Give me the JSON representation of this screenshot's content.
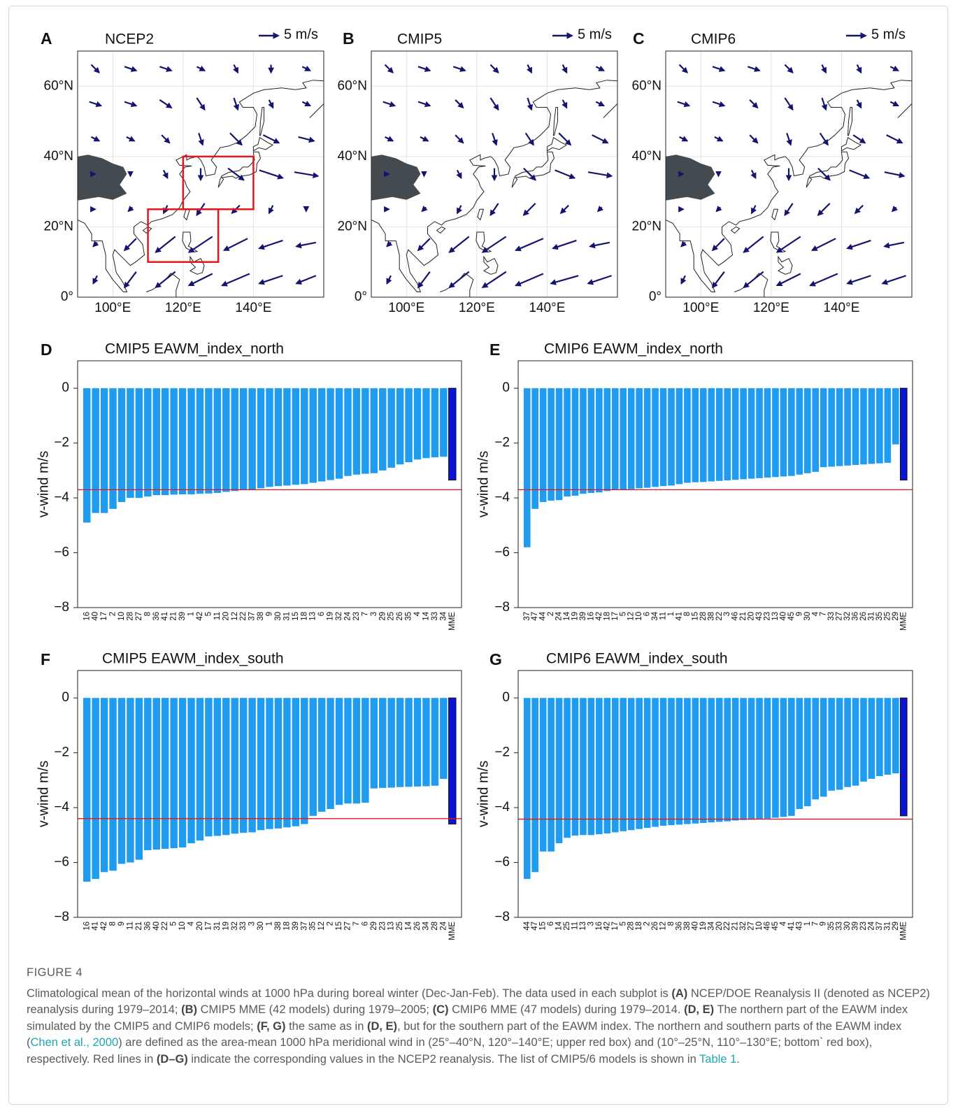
{
  "chart_data": [
    {
      "type": "vector",
      "label": "A",
      "title": "NCEP2",
      "key": {
        "value": 5,
        "label": "5 m/s"
      },
      "xlim": [
        90,
        160
      ],
      "ylim": [
        0,
        70
      ],
      "xticks": [
        {
          "value": 100,
          "label": "100°E"
        },
        {
          "value": 120,
          "label": "120°E"
        },
        {
          "value": 140,
          "label": "140°E"
        }
      ],
      "yticks": [
        {
          "value": 60,
          "label": "60°N"
        },
        {
          "value": 40,
          "label": "40°N"
        },
        {
          "value": 20,
          "label": "20°N"
        },
        {
          "value": 0,
          "label": "0°"
        }
      ],
      "grid": true,
      "color": "#14146e",
      "lon": [
        95,
        105,
        115,
        125,
        135,
        145,
        155
      ],
      "lat": [
        65,
        55,
        45,
        35,
        25,
        15,
        5
      ],
      "u": [
        [
          2,
          3,
          3,
          2,
          1,
          0,
          2
        ],
        [
          3,
          3,
          3,
          2,
          1,
          1,
          2
        ],
        [
          2,
          2,
          2,
          1,
          3,
          4,
          4
        ],
        [
          0,
          0,
          1,
          0,
          4,
          6,
          6
        ],
        [
          0,
          -1,
          -1,
          -2,
          -2,
          -1,
          0
        ],
        [
          -1,
          -3,
          -5,
          -6,
          -6,
          -6,
          -5
        ],
        [
          -1,
          -3,
          -5,
          -6,
          -7,
          -6,
          -5
        ]
      ],
      "v": [
        [
          -2,
          -1,
          -1,
          -1,
          -2,
          -2,
          -1
        ],
        [
          -1,
          -1,
          -2,
          -3,
          -3,
          -2,
          -1
        ],
        [
          -1,
          -1,
          -2,
          -3,
          -3,
          -2,
          -1
        ],
        [
          0,
          -1,
          -2,
          -3,
          -3,
          -2,
          -1
        ],
        [
          0,
          -1,
          -2,
          -3,
          -2,
          -2,
          -1
        ],
        [
          -1,
          -3,
          -4,
          -4,
          -3,
          -2,
          -1
        ],
        [
          -2,
          -4,
          -4,
          -3,
          -3,
          -2,
          -2
        ]
      ],
      "boxes": [
        {
          "lon": [
            120,
            140
          ],
          "lat": [
            25,
            40
          ]
        },
        {
          "lon": [
            110,
            130
          ],
          "lat": [
            10,
            25
          ]
        }
      ],
      "box_color": "#e8141b"
    },
    {
      "type": "vector",
      "label": "B",
      "title": "CMIP5",
      "key": {
        "value": 5,
        "label": "5 m/s"
      },
      "xlim": [
        90,
        160
      ],
      "ylim": [
        0,
        70
      ],
      "xticks": [
        {
          "value": 100,
          "label": "100°E"
        },
        {
          "value": 120,
          "label": "120°E"
        },
        {
          "value": 140,
          "label": "140°E"
        }
      ],
      "yticks": [
        {
          "value": 60,
          "label": "60°N"
        },
        {
          "value": 40,
          "label": "40°N"
        },
        {
          "value": 20,
          "label": "20°N"
        },
        {
          "value": 0,
          "label": "0°"
        }
      ],
      "grid": true,
      "color": "#14146e",
      "lon": [
        95,
        105,
        115,
        125,
        135,
        145,
        155
      ],
      "lat": [
        65,
        55,
        45,
        35,
        25,
        15,
        5
      ],
      "u": [
        [
          2,
          3,
          3,
          2,
          1,
          1,
          2
        ],
        [
          3,
          3,
          2,
          2,
          1,
          1,
          2
        ],
        [
          2,
          2,
          2,
          1,
          2,
          3,
          4
        ],
        [
          0,
          0,
          1,
          0,
          3,
          5,
          6
        ],
        [
          0,
          -1,
          -1,
          -2,
          -3,
          -2,
          -1
        ],
        [
          -1,
          -3,
          -5,
          -6,
          -7,
          -6,
          -5
        ],
        [
          -1,
          -3,
          -5,
          -6,
          -7,
          -7,
          -6
        ]
      ],
      "v": [
        [
          -2,
          -1,
          -1,
          -2,
          -2,
          -2,
          -1
        ],
        [
          -1,
          -1,
          -2,
          -3,
          -3,
          -2,
          -1
        ],
        [
          -1,
          -1,
          -2,
          -3,
          -3,
          -3,
          -2
        ],
        [
          0,
          -1,
          -2,
          -3,
          -3,
          -2,
          -1
        ],
        [
          0,
          -1,
          -2,
          -3,
          -3,
          -2,
          -1
        ],
        [
          -1,
          -3,
          -4,
          -4,
          -3,
          -2,
          -1
        ],
        [
          -2,
          -4,
          -4,
          -4,
          -3,
          -2,
          -2
        ]
      ]
    },
    {
      "type": "vector",
      "label": "C",
      "title": "CMIP6",
      "key": {
        "value": 5,
        "label": "5 m/s"
      },
      "xlim": [
        90,
        160
      ],
      "ylim": [
        0,
        70
      ],
      "xticks": [
        {
          "value": 100,
          "label": "100°E"
        },
        {
          "value": 120,
          "label": "120°E"
        },
        {
          "value": 140,
          "label": "140°E"
        }
      ],
      "yticks": [
        {
          "value": 60,
          "label": "60°N"
        },
        {
          "value": 40,
          "label": "40°N"
        },
        {
          "value": 20,
          "label": "20°N"
        },
        {
          "value": 0,
          "label": "0°"
        }
      ],
      "grid": true,
      "color": "#14146e",
      "lon": [
        95,
        105,
        115,
        125,
        135,
        145,
        155
      ],
      "lat": [
        65,
        55,
        45,
        35,
        25,
        15,
        5
      ],
      "u": [
        [
          2,
          3,
          3,
          2,
          1,
          1,
          2
        ],
        [
          3,
          3,
          2,
          2,
          1,
          1,
          2
        ],
        [
          2,
          2,
          2,
          1,
          2,
          3,
          4
        ],
        [
          0,
          0,
          1,
          0,
          3,
          5,
          5
        ],
        [
          0,
          -1,
          -1,
          -2,
          -3,
          -2,
          -1
        ],
        [
          -1,
          -3,
          -5,
          -6,
          -6,
          -6,
          -5
        ],
        [
          -1,
          -3,
          -5,
          -6,
          -7,
          -6,
          -6
        ]
      ],
      "v": [
        [
          -2,
          -1,
          -1,
          -2,
          -2,
          -2,
          -1
        ],
        [
          -1,
          -1,
          -2,
          -3,
          -3,
          -2,
          -1
        ],
        [
          -1,
          -1,
          -2,
          -3,
          -3,
          -2,
          -2
        ],
        [
          0,
          -1,
          -2,
          -3,
          -3,
          -2,
          -1
        ],
        [
          0,
          -1,
          -2,
          -3,
          -3,
          -2,
          -1
        ],
        [
          -1,
          -3,
          -4,
          -4,
          -3,
          -2,
          -1
        ],
        [
          -2,
          -4,
          -4,
          -3,
          -3,
          -2,
          -2
        ]
      ]
    },
    {
      "type": "bar",
      "label": "D",
      "title": "CMIP5 EAWM_index_north",
      "ylabel": "v-wind m/s",
      "categories": [
        "16",
        "40",
        "17",
        "2",
        "10",
        "28",
        "27",
        "8",
        "36",
        "41",
        "21",
        "39",
        "1",
        "42",
        "5",
        "11",
        "20",
        "12",
        "22",
        "37",
        "38",
        "9",
        "30",
        "31",
        "15",
        "18",
        "13",
        "6",
        "19",
        "32",
        "24",
        "23",
        "7",
        "3",
        "29",
        "25",
        "26",
        "35",
        "4",
        "14",
        "33",
        "34",
        "MME"
      ],
      "values": [
        -4.9,
        -4.55,
        -4.55,
        -4.4,
        -4.15,
        -4.0,
        -4.0,
        -3.95,
        -3.9,
        -3.9,
        -3.88,
        -3.87,
        -3.87,
        -3.85,
        -3.84,
        -3.82,
        -3.78,
        -3.75,
        -3.72,
        -3.7,
        -3.65,
        -3.6,
        -3.57,
        -3.55,
        -3.52,
        -3.5,
        -3.45,
        -3.4,
        -3.35,
        -3.3,
        -3.2,
        -3.15,
        -3.12,
        -3.1,
        -3.0,
        -2.9,
        -2.78,
        -2.7,
        -2.6,
        -2.55,
        -2.52,
        -2.5,
        -3.35
      ],
      "color": "#1f9cf0",
      "highlight_color": "#0a14d8",
      "reference_line": -3.7,
      "reference_color": "#e8141b",
      "ylim": [
        -8,
        1
      ],
      "yticks": [
        0,
        {
          "value": -2,
          "label": "−2"
        },
        {
          "value": -4,
          "label": "−4"
        },
        {
          "value": -6,
          "label": "−6"
        },
        {
          "value": -8,
          "label": "−8"
        }
      ]
    },
    {
      "type": "bar",
      "label": "E",
      "title": "CMIP6 EAWM_index_north",
      "ylabel": "v-wind m/s",
      "categories": [
        "37",
        "47",
        "44",
        "2",
        "24",
        "14",
        "19",
        "39",
        "16",
        "42",
        "18",
        "17",
        "5",
        "12",
        "10",
        "6",
        "34",
        "11",
        "1",
        "41",
        "8",
        "15",
        "28",
        "38",
        "22",
        "3",
        "46",
        "21",
        "20",
        "43",
        "23",
        "13",
        "40",
        "45",
        "9",
        "30",
        "4",
        "7",
        "33",
        "27",
        "32",
        "36",
        "26",
        "31",
        "35",
        "25",
        "29",
        "MME"
      ],
      "values": [
        -5.8,
        -4.4,
        -4.15,
        -4.1,
        -4.08,
        -3.95,
        -3.92,
        -3.85,
        -3.82,
        -3.8,
        -3.75,
        -3.7,
        -3.7,
        -3.68,
        -3.65,
        -3.63,
        -3.6,
        -3.57,
        -3.55,
        -3.5,
        -3.45,
        -3.43,
        -3.42,
        -3.4,
        -3.38,
        -3.36,
        -3.34,
        -3.32,
        -3.3,
        -3.28,
        -3.26,
        -3.24,
        -3.22,
        -3.2,
        -3.15,
        -3.1,
        -3.05,
        -2.88,
        -2.86,
        -2.84,
        -2.82,
        -2.8,
        -2.78,
        -2.76,
        -2.74,
        -2.72,
        -2.05,
        -3.35
      ],
      "color": "#1f9cf0",
      "highlight_color": "#0a14d8",
      "reference_line": -3.7,
      "reference_color": "#e8141b",
      "ylim": [
        -8,
        1
      ],
      "yticks": [
        0,
        {
          "value": -2,
          "label": "−2"
        },
        {
          "value": -4,
          "label": "−4"
        },
        {
          "value": -6,
          "label": "−6"
        },
        {
          "value": -8,
          "label": "−8"
        }
      ]
    },
    {
      "type": "bar",
      "label": "F",
      "title": "CMIP5 EAWM_index_south",
      "ylabel": "v-wind m/s",
      "categories": [
        "16",
        "41",
        "42",
        "8",
        "9",
        "11",
        "21",
        "36",
        "40",
        "22",
        "5",
        "10",
        "4",
        "20",
        "17",
        "31",
        "19",
        "32",
        "33",
        "3",
        "30",
        "1",
        "38",
        "18",
        "39",
        "37",
        "35",
        "12",
        "2",
        "15",
        "27",
        "7",
        "6",
        "29",
        "23",
        "13",
        "25",
        "14",
        "26",
        "34",
        "28",
        "24",
        "MME"
      ],
      "values": [
        -6.7,
        -6.6,
        -6.35,
        -6.3,
        -6.05,
        -6.0,
        -5.9,
        -5.55,
        -5.53,
        -5.5,
        -5.48,
        -5.45,
        -5.3,
        -5.2,
        -5.05,
        -5.03,
        -5.0,
        -4.95,
        -4.92,
        -4.9,
        -4.82,
        -4.78,
        -4.76,
        -4.72,
        -4.68,
        -4.6,
        -4.3,
        -4.15,
        -4.05,
        -3.9,
        -3.85,
        -3.85,
        -3.82,
        -3.3,
        -3.28,
        -3.27,
        -3.25,
        -3.24,
        -3.23,
        -3.22,
        -3.2,
        -2.95,
        -4.6
      ],
      "color": "#1f9cf0",
      "highlight_color": "#0a14d8",
      "reference_line": -4.4,
      "reference_color": "#e8141b",
      "ylim": [
        -8,
        1
      ],
      "yticks": [
        0,
        {
          "value": -2,
          "label": "−2"
        },
        {
          "value": -4,
          "label": "−4"
        },
        {
          "value": -6,
          "label": "−6"
        },
        {
          "value": -8,
          "label": "−8"
        }
      ]
    },
    {
      "type": "bar",
      "label": "G",
      "title": "CMIP6 EAWM_index_south",
      "ylabel": "v-wind m/s",
      "categories": [
        "44",
        "47",
        "15",
        "6",
        "14",
        "25",
        "11",
        "13",
        "3",
        "16",
        "42",
        "17",
        "5",
        "28",
        "18",
        "2",
        "26",
        "12",
        "8",
        "36",
        "38",
        "40",
        "19",
        "34",
        "20",
        "22",
        "21",
        "32",
        "27",
        "10",
        "46",
        "45",
        "4",
        "41",
        "43",
        "1",
        "7",
        "9",
        "35",
        "33",
        "30",
        "39",
        "23",
        "24",
        "37",
        "31",
        "29",
        "MME"
      ],
      "values": [
        -6.6,
        -6.35,
        -5.6,
        -5.6,
        -5.3,
        -5.1,
        -5.02,
        -5.0,
        -5.0,
        -4.97,
        -4.94,
        -4.9,
        -4.86,
        -4.82,
        -4.78,
        -4.74,
        -4.7,
        -4.66,
        -4.64,
        -4.62,
        -4.6,
        -4.58,
        -4.56,
        -4.54,
        -4.52,
        -4.5,
        -4.47,
        -4.45,
        -4.44,
        -4.42,
        -4.4,
        -4.37,
        -4.34,
        -4.3,
        -4.05,
        -3.95,
        -3.7,
        -3.6,
        -3.38,
        -3.35,
        -3.25,
        -3.2,
        -3.05,
        -2.95,
        -2.85,
        -2.8,
        -2.75,
        -4.3
      ],
      "color": "#1f9cf0",
      "highlight_color": "#0a14d8",
      "reference_line": -4.42,
      "reference_color": "#e8141b",
      "ylim": [
        -8,
        1
      ],
      "yticks": [
        0,
        {
          "value": -2,
          "label": "−2"
        },
        {
          "value": -4,
          "label": "−4"
        },
        {
          "value": -6,
          "label": "−6"
        },
        {
          "value": -8,
          "label": "−8"
        }
      ]
    }
  ],
  "caption": {
    "label": "FIGURE 4",
    "parts": [
      {
        "text": "Climatological mean of the horizontal winds at 1000 hPa during boreal winter (Dec-Jan-Feb). The data used in each subplot is "
      },
      {
        "text": "(A)",
        "style": "bold"
      },
      {
        "text": " NCEP/DOE Reanalysis II (denoted as NCEP2) reanalysis during 1979–2014; "
      },
      {
        "text": "(B)",
        "style": "bold"
      },
      {
        "text": " CMIP5 MME (42 models) during 1979–2005; "
      },
      {
        "text": "(C)",
        "style": "bold"
      },
      {
        "text": " CMIP6 MME (47 models) during 1979–2014. "
      },
      {
        "text": "(D, E)",
        "style": "bold"
      },
      {
        "text": " The northern part of the EAWM index simulated by the CMIP5 and CMIP6 models; "
      },
      {
        "text": "(F, G)",
        "style": "bold"
      },
      {
        "text": " the same as in "
      },
      {
        "text": "(D, E)",
        "style": "bold"
      },
      {
        "text": ", but for the southern part of the EAWM index. The northern and southern parts of the EAWM index ("
      },
      {
        "text": "Chen et al., 2000",
        "style": "link"
      },
      {
        "text": ") are defined as the area-mean 1000 hPa meridional wind in (25°–40°N, 120°–140°E; upper red box) and (10°–25°N, 110°–130°E; bottom` red box), respectively. Red lines in "
      },
      {
        "text": "(D–G)",
        "style": "bold"
      },
      {
        "text": " indicate the corresponding values in the NCEP2 reanalysis. The list of CMIP5/6 models is shown in "
      },
      {
        "text": "Table 1",
        "style": "link"
      },
      {
        "text": "."
      }
    ]
  }
}
